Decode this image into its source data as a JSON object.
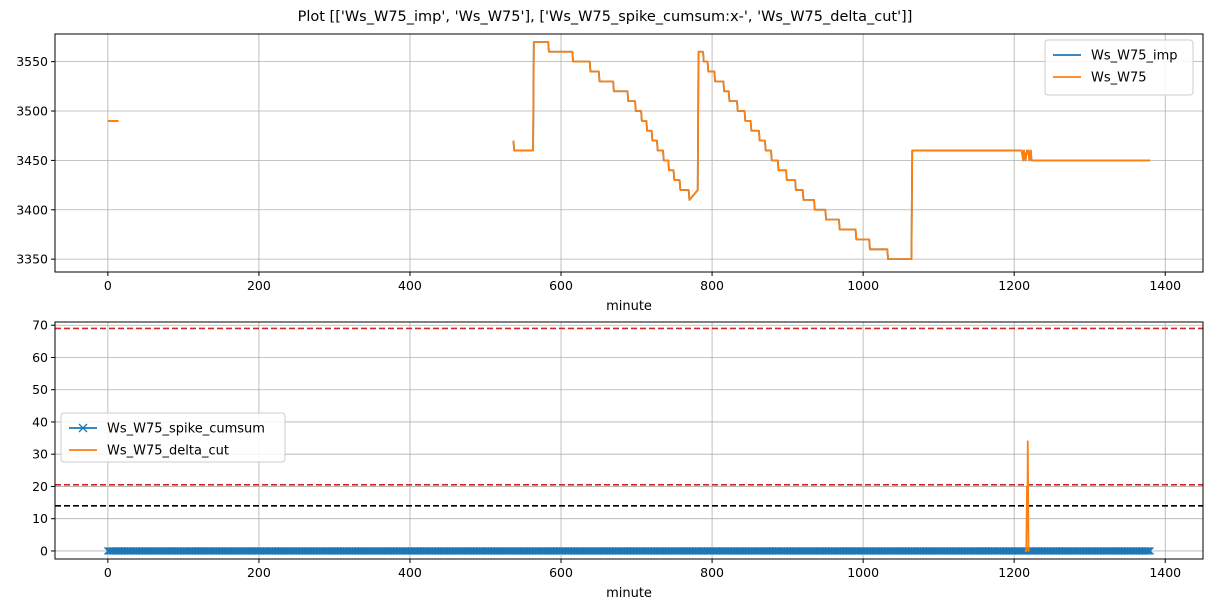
{
  "figure": {
    "title": "Plot [['Ws_W75_imp', 'Ws_W75'], ['Ws_W75_spike_cumsum:x-', 'Ws_W75_delta_cut']]"
  },
  "chart_data": [
    {
      "type": "line",
      "xlabel": "minute",
      "ylabel": "",
      "xlim": [
        -70,
        1450
      ],
      "ylim": [
        3337,
        3578
      ],
      "xticks": [
        0,
        200,
        400,
        600,
        800,
        1000,
        1200,
        1400
      ],
      "yticks": [
        3350,
        3400,
        3450,
        3500,
        3550
      ],
      "grid": true,
      "legend": "top-right",
      "series": [
        {
          "name": "Ws_W75_imp",
          "color": "#1f77b4",
          "segments": [
            [
              [
                0,
                3490
              ],
              [
                14,
                3490
              ]
            ],
            [
              [
                537,
                3470
              ],
              [
                538,
                3460
              ],
              [
                563,
                3460
              ],
              [
                564,
                3570
              ],
              [
                583,
                3570
              ],
              [
                584,
                3560
              ],
              [
                615,
                3560
              ],
              [
                616,
                3550
              ],
              [
                638,
                3550
              ],
              [
                639,
                3540
              ],
              [
                650,
                3540
              ],
              [
                651,
                3530
              ],
              [
                669,
                3530
              ],
              [
                670,
                3520
              ],
              [
                688,
                3520
              ],
              [
                689,
                3510
              ],
              [
                698,
                3510
              ],
              [
                699,
                3500
              ],
              [
                706,
                3500
              ],
              [
                707,
                3490
              ],
              [
                713,
                3490
              ],
              [
                714,
                3480
              ],
              [
                720,
                3480
              ],
              [
                721,
                3470
              ],
              [
                727,
                3470
              ],
              [
                728,
                3460
              ],
              [
                735,
                3460
              ],
              [
                736,
                3450
              ],
              [
                742,
                3450
              ],
              [
                743,
                3440
              ],
              [
                749,
                3440
              ],
              [
                750,
                3430
              ],
              [
                757,
                3430
              ],
              [
                758,
                3420
              ],
              [
                769,
                3420
              ],
              [
                770,
                3410
              ],
              [
                781,
                3420
              ],
              [
                782,
                3560
              ],
              [
                788,
                3560
              ],
              [
                789,
                3550
              ],
              [
                794,
                3550
              ],
              [
                795,
                3540
              ],
              [
                803,
                3540
              ],
              [
                804,
                3530
              ],
              [
                815,
                3530
              ],
              [
                816,
                3520
              ],
              [
                822,
                3520
              ],
              [
                823,
                3510
              ],
              [
                833,
                3510
              ],
              [
                834,
                3500
              ],
              [
                843,
                3500
              ],
              [
                844,
                3490
              ],
              [
                851,
                3490
              ],
              [
                852,
                3480
              ],
              [
                862,
                3480
              ],
              [
                863,
                3470
              ],
              [
                870,
                3470
              ],
              [
                871,
                3460
              ],
              [
                878,
                3460
              ],
              [
                879,
                3450
              ],
              [
                887,
                3450
              ],
              [
                888,
                3440
              ],
              [
                898,
                3440
              ],
              [
                899,
                3430
              ],
              [
                910,
                3430
              ],
              [
                911,
                3420
              ],
              [
                920,
                3420
              ],
              [
                921,
                3410
              ],
              [
                935,
                3410
              ],
              [
                936,
                3400
              ],
              [
                950,
                3400
              ],
              [
                951,
                3390
              ],
              [
                968,
                3390
              ],
              [
                969,
                3380
              ],
              [
                990,
                3380
              ],
              [
                991,
                3370
              ],
              [
                1008,
                3370
              ],
              [
                1009,
                3360
              ],
              [
                1032,
                3360
              ],
              [
                1033,
                3350
              ],
              [
                1064,
                3350
              ],
              [
                1065,
                3460
              ],
              [
                1210,
                3460
              ],
              [
                1212,
                3450
              ],
              [
                1213,
                3460
              ],
              [
                1215,
                3450
              ],
              [
                1217,
                3460
              ],
              [
                1219,
                3460
              ],
              [
                1220,
                3450
              ],
              [
                1222,
                3460
              ],
              [
                1223,
                3450
              ],
              [
                1380,
                3450
              ]
            ]
          ]
        },
        {
          "name": "Ws_W75",
          "color": "#ff7f0e",
          "segments": [
            [
              [
                0,
                3490
              ],
              [
                14,
                3490
              ]
            ],
            [
              [
                537,
                3470
              ],
              [
                538,
                3460
              ],
              [
                563,
                3460
              ],
              [
                564,
                3570
              ],
              [
                583,
                3570
              ],
              [
                584,
                3560
              ],
              [
                615,
                3560
              ],
              [
                616,
                3550
              ],
              [
                638,
                3550
              ],
              [
                639,
                3540
              ],
              [
                650,
                3540
              ],
              [
                651,
                3530
              ],
              [
                669,
                3530
              ],
              [
                670,
                3520
              ],
              [
                688,
                3520
              ],
              [
                689,
                3510
              ],
              [
                698,
                3510
              ],
              [
                699,
                3500
              ],
              [
                706,
                3500
              ],
              [
                707,
                3490
              ],
              [
                713,
                3490
              ],
              [
                714,
                3480
              ],
              [
                720,
                3480
              ],
              [
                721,
                3470
              ],
              [
                727,
                3470
              ],
              [
                728,
                3460
              ],
              [
                735,
                3460
              ],
              [
                736,
                3450
              ],
              [
                742,
                3450
              ],
              [
                743,
                3440
              ],
              [
                749,
                3440
              ],
              [
                750,
                3430
              ],
              [
                757,
                3430
              ],
              [
                758,
                3420
              ],
              [
                769,
                3420
              ],
              [
                770,
                3410
              ],
              [
                781,
                3420
              ],
              [
                782,
                3560
              ],
              [
                788,
                3560
              ],
              [
                789,
                3550
              ],
              [
                794,
                3550
              ],
              [
                795,
                3540
              ],
              [
                803,
                3540
              ],
              [
                804,
                3530
              ],
              [
                815,
                3530
              ],
              [
                816,
                3520
              ],
              [
                822,
                3520
              ],
              [
                823,
                3510
              ],
              [
                833,
                3510
              ],
              [
                834,
                3500
              ],
              [
                843,
                3500
              ],
              [
                844,
                3490
              ],
              [
                851,
                3490
              ],
              [
                852,
                3480
              ],
              [
                862,
                3480
              ],
              [
                863,
                3470
              ],
              [
                870,
                3470
              ],
              [
                871,
                3460
              ],
              [
                878,
                3460
              ],
              [
                879,
                3450
              ],
              [
                887,
                3450
              ],
              [
                888,
                3440
              ],
              [
                898,
                3440
              ],
              [
                899,
                3430
              ],
              [
                910,
                3430
              ],
              [
                911,
                3420
              ],
              [
                920,
                3420
              ],
              [
                921,
                3410
              ],
              [
                935,
                3410
              ],
              [
                936,
                3400
              ],
              [
                950,
                3400
              ],
              [
                951,
                3390
              ],
              [
                968,
                3390
              ],
              [
                969,
                3380
              ],
              [
                990,
                3380
              ],
              [
                991,
                3370
              ],
              [
                1008,
                3370
              ],
              [
                1009,
                3360
              ],
              [
                1032,
                3360
              ],
              [
                1033,
                3350
              ],
              [
                1064,
                3350
              ],
              [
                1065,
                3460
              ],
              [
                1210,
                3460
              ],
              [
                1212,
                3450
              ],
              [
                1213,
                3460
              ],
              [
                1215,
                3450
              ],
              [
                1217,
                3460
              ],
              [
                1219,
                3460
              ],
              [
                1220,
                3450
              ],
              [
                1222,
                3460
              ],
              [
                1223,
                3450
              ],
              [
                1380,
                3450
              ]
            ]
          ]
        }
      ]
    },
    {
      "type": "line",
      "xlabel": "minute",
      "ylabel": "",
      "xlim": [
        -70,
        1450
      ],
      "ylim": [
        -2.5,
        71
      ],
      "xticks": [
        0,
        200,
        400,
        600,
        800,
        1000,
        1200,
        1400
      ],
      "yticks": [
        0,
        10,
        20,
        30,
        40,
        50,
        60,
        70
      ],
      "grid": true,
      "legend": "center-left",
      "series": [
        {
          "name": "Ws_W75_spike_cumsum",
          "color": "#1f77b4",
          "marker": "x",
          "segments": [
            [
              [
                0,
                0
              ],
              [
                1380,
                0
              ]
            ]
          ]
        },
        {
          "name": "Ws_W75_delta_cut",
          "color": "#ff7f0e",
          "segments": [
            [
              [
                1214,
                0
              ],
              [
                1216,
                0
              ],
              [
                1217,
                20
              ],
              [
                1217.5,
                7
              ],
              [
                1218,
                34
              ],
              [
                1219,
                0
              ],
              [
                1220,
                0
              ]
            ]
          ]
        }
      ],
      "hlines": [
        {
          "y": 69,
          "color": "#d62728",
          "style": "dashed"
        },
        {
          "y": 20.5,
          "color": "#d62728",
          "style": "dashed"
        },
        {
          "y": 14,
          "color": "#000000",
          "style": "dashed"
        }
      ]
    }
  ]
}
